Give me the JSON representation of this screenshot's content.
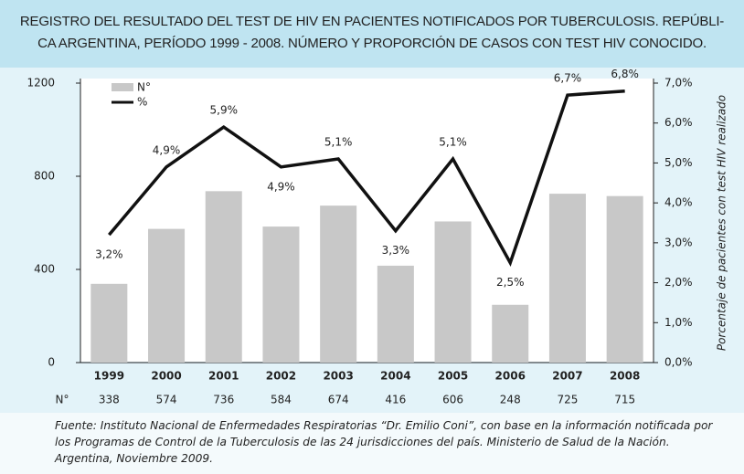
{
  "chart_data": {
    "type": "bar_line",
    "title": [
      "REGISTRO DEL RESULTADO DEL TEST DE HIV EN PACIENTES NOTIFICADOS POR TUBERCULOSIS. REPÚBLI-",
      "CA ARGENTINA, PERÍODO 1999 - 2008. NÚMERO Y PROPORCIÓN DE CASOS CON TEST HIV CONOCIDO."
    ],
    "categories": [
      "1999",
      "2000",
      "2001",
      "2002",
      "2003",
      "2004",
      "2005",
      "2006",
      "2007",
      "2008"
    ],
    "series": [
      {
        "name": "N°",
        "type": "bar",
        "color": "#c8c8c8",
        "values": [
          338,
          574,
          736,
          584,
          674,
          416,
          606,
          248,
          725,
          715
        ]
      },
      {
        "name": "%",
        "type": "line",
        "axis": "y2",
        "color": "#111111",
        "values": [
          3.2,
          4.9,
          5.9,
          4.9,
          5.1,
          3.3,
          5.1,
          2.5,
          6.7,
          6.8
        ],
        "value_labels": [
          "3,2%",
          "4,9%",
          "5,9%",
          "4,9%",
          "5,1%",
          "3,3%",
          "5,1%",
          "2,5%",
          "6,7%",
          "6,8%"
        ]
      }
    ],
    "ylim": [
      0,
      1200
    ],
    "yticks": [
      0,
      400,
      800,
      1200
    ],
    "y2lim": [
      0,
      7
    ],
    "y2ticks": [
      {
        "value": 0,
        "label": "0,0%"
      },
      {
        "value": 1,
        "label": "1,0%"
      },
      {
        "value": 2,
        "label": "2,0%"
      },
      {
        "value": 3,
        "label": "3,0%"
      },
      {
        "value": 4,
        "label": "4,0%"
      },
      {
        "value": 5,
        "label": "5,0%"
      },
      {
        "value": 6,
        "label": "6,0%"
      },
      {
        "value": 7,
        "label": "7,0%"
      }
    ],
    "y2label": "Porcentaje de pacientes con test HIV realizado",
    "legend": "upper left",
    "source": "Fuente: Instituto Nacional de Enfermedades Respiratorias “Dr. Emilio Coni”, con base en la información notificada por los Programas de Control de la Tuberculosis de las 24 jurisdicciones del país. Ministerio de Salud de la Nación. Argentina, Noviembre 2009."
  }
}
